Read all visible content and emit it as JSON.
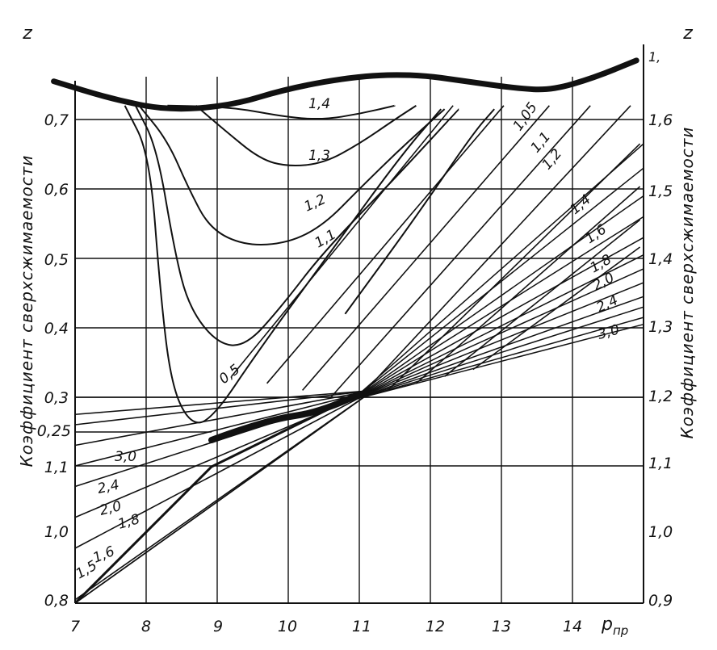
{
  "chart_data": {
    "type": "line",
    "title": "",
    "x_axis": {
      "label": "p_пр",
      "label_main": "p",
      "label_sub": "пр",
      "range": [
        7,
        15
      ],
      "ticks": [
        7,
        8,
        9,
        10,
        11,
        12,
        13,
        14
      ],
      "tick_labels": [
        "7",
        "8",
        "9",
        "10",
        "11",
        "12",
        "13",
        "14"
      ]
    },
    "left_axis": {
      "symbol": "z",
      "title": "Коэффициент сверхсжимаемости",
      "upper_scale_labels": [
        "0,7",
        "0,6",
        "0,5",
        "0,4",
        "0,3",
        "0,25"
      ],
      "lower_scale_labels": [
        "1,1",
        "1,0",
        "0,8"
      ]
    },
    "right_axis": {
      "symbol": "z",
      "title": "Коэффициент сверхсжимаемости",
      "scale_labels": [
        "1,6",
        "1,5",
        "1,4",
        "1,3",
        "1,2",
        "1,1",
        "1,0",
        "0,9"
      ],
      "top_label": "1,"
    },
    "grid": true,
    "legend": "none",
    "series_note": "Curve families labeled by reduced temperature T_пр",
    "upper_family": [
      {
        "name": "1,4",
        "points": [
          [
            8.3,
            0.72
          ],
          [
            9.2,
            0.718
          ],
          [
            10.0,
            0.703
          ],
          [
            10.5,
            0.7
          ],
          [
            11.0,
            0.708
          ],
          [
            11.5,
            0.72
          ]
        ]
      },
      {
        "name": "1,3",
        "points": [
          [
            8.7,
            0.72
          ],
          [
            9.1,
            0.685
          ],
          [
            9.6,
            0.643
          ],
          [
            10.0,
            0.632
          ],
          [
            10.5,
            0.637
          ],
          [
            11.0,
            0.665
          ],
          [
            11.5,
            0.7
          ],
          [
            11.8,
            0.72
          ]
        ]
      },
      {
        "name": "1,2",
        "points": [
          [
            7.9,
            0.72
          ],
          [
            8.3,
            0.67
          ],
          [
            8.6,
            0.6
          ],
          [
            8.9,
            0.542
          ],
          [
            9.4,
            0.518
          ],
          [
            10.0,
            0.522
          ],
          [
            10.5,
            0.548
          ],
          [
            11.0,
            0.6
          ],
          [
            11.6,
            0.66
          ],
          [
            12.2,
            0.715
          ]
        ]
      },
      {
        "name": "1,1",
        "points": [
          [
            7.85,
            0.72
          ],
          [
            8.15,
            0.66
          ],
          [
            8.4,
            0.51
          ],
          [
            8.6,
            0.43
          ],
          [
            9.0,
            0.377
          ],
          [
            9.4,
            0.373
          ],
          [
            9.9,
            0.43
          ],
          [
            10.5,
            0.51
          ],
          [
            11.5,
            0.615
          ],
          [
            12.4,
            0.715
          ]
        ]
      },
      {
        "name": "0,5",
        "points": [
          [
            7.7,
            0.72
          ],
          [
            8.05,
            0.65
          ],
          [
            8.2,
            0.45
          ],
          [
            8.35,
            0.32
          ],
          [
            8.6,
            0.263
          ],
          [
            8.9,
            0.264
          ],
          [
            9.6,
            0.37
          ],
          [
            10.6,
            0.51
          ],
          [
            11.6,
            0.65
          ],
          [
            12.15,
            0.715
          ]
        ]
      },
      {
        "name": "1,05",
        "points": [
          [
            10.8,
            0.42
          ],
          [
            11.8,
            0.56
          ],
          [
            12.6,
            0.68
          ],
          [
            12.9,
            0.715
          ]
        ]
      }
    ],
    "upper_boundary": [
      [
        6.7,
        0.755
      ],
      [
        7.5,
        0.73
      ],
      [
        8.3,
        0.713
      ],
      [
        9.2,
        0.72
      ],
      [
        10.0,
        0.745
      ],
      [
        11.0,
        0.763
      ],
      [
        11.8,
        0.765
      ],
      [
        12.5,
        0.755
      ],
      [
        13.2,
        0.745
      ],
      [
        13.7,
        0.742
      ],
      [
        14.3,
        0.76
      ],
      [
        14.9,
        0.785
      ]
    ],
    "lower_family": [
      {
        "name": "3,0",
        "start": 1.075,
        "slope": 0.055
      },
      {
        "name": "2,4",
        "start": 1.06,
        "slope": 0.06
      },
      {
        "name": "2,0",
        "start": 1.03,
        "slope": 0.066
      },
      {
        "name": "1,8",
        "start": 1.0,
        "slope": 0.073
      },
      {
        "name": "1,6",
        "start": 0.97,
        "slope": 0.083
      },
      {
        "name": "1,5",
        "start": 0.925,
        "slope": 0.098
      },
      {
        "name": "1,4",
        "start": 0.88,
        "slope": 0.115
      },
      {
        "name": "1,2",
        "start": 0.805,
        "slope": 0.145
      },
      {
        "name": "1,1",
        "start": 0.8,
        "slope": 0.165
      },
      {
        "name": "1,05",
        "start": 0.8,
        "slope": 0.19
      }
    ],
    "labels": {
      "upper": {
        "t14": "1,4",
        "t13": "1,3",
        "t12": "1,2",
        "t11": "1,1",
        "t05": "0,5"
      },
      "lower_left": {
        "t30": "3,0",
        "t24": "2,4",
        "t20": "2,0",
        "t18": "1,8",
        "t16": "1,6",
        "t15": "1,5"
      },
      "right": {
        "t105": "1,05",
        "t11": "1,1",
        "t12": "1,2",
        "t14": "1,4",
        "t16": "1,6",
        "t18": "1,8",
        "t20": "2,0",
        "t24": "2,4",
        "t30": "3,0"
      }
    }
  }
}
